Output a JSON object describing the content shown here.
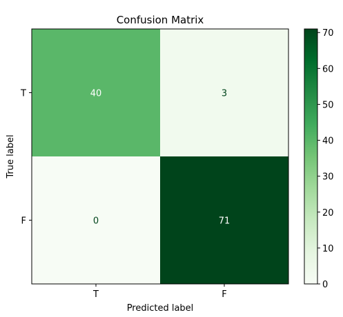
{
  "chart_data": {
    "type": "heatmap",
    "title": "Confusion Matrix",
    "xlabel": "Predicted label",
    "ylabel": "True label",
    "row_labels": [
      "T",
      "F"
    ],
    "col_labels": [
      "T",
      "F"
    ],
    "values": [
      [
        40,
        3
      ],
      [
        0,
        71
      ]
    ],
    "colorscale": "Greens",
    "color_range": [
      0,
      71
    ],
    "colorbar_ticks": [
      0,
      10,
      20,
      30,
      40,
      50,
      60,
      70
    ]
  }
}
